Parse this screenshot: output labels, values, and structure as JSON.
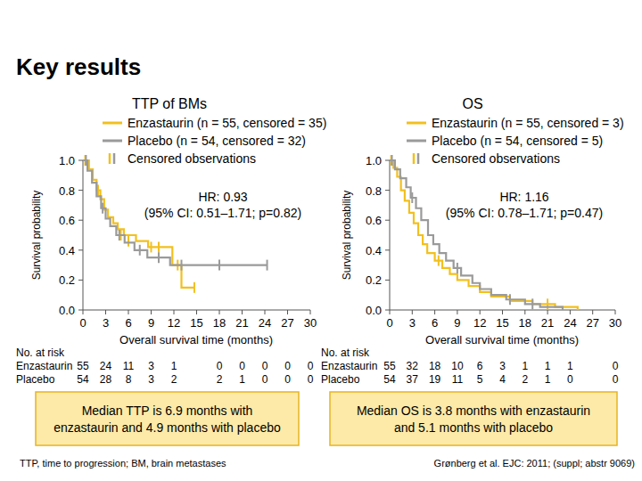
{
  "page": {
    "title": "Key results",
    "footnote": "TTP, time to progression; BM, brain metastases",
    "citation": "Grønberg et al. EJC: 2011; (suppl; abstr 9069)"
  },
  "chart_data": [
    {
      "type": "line",
      "title": "TTP of BMs",
      "x_label": "Overall survival time (months)",
      "y_label": "Survival probability",
      "xlim": [
        0,
        30
      ],
      "ylim": [
        0,
        1
      ],
      "xticks": [
        0,
        3,
        6,
        9,
        12,
        15,
        18,
        21,
        24,
        27,
        30
      ],
      "yticks": [
        {
          "value": 0,
          "label": "0.0"
        },
        0.2,
        0.4,
        0.6,
        0.8,
        {
          "value": 1,
          "label": "1.0"
        }
      ],
      "grid": false,
      "censored_label": "Censored observations",
      "annotation": [
        "HR: 0.93",
        "(95% CI: 0.51–1.71; p=0.82)"
      ],
      "series": [
        {
          "name": "Enzastaurin (n = 55, censored = 35)",
          "color": "#f2c01e",
          "x": [
            0,
            0.8,
            0.8,
            1.3,
            1.3,
            1.8,
            1.8,
            2.3,
            2.3,
            2.8,
            2.8,
            3.3,
            3.3,
            4,
            4,
            4.6,
            4.6,
            5.4,
            5.4,
            7,
            7,
            8.6,
            8.6,
            11.8,
            11.8,
            13,
            13,
            14.7
          ],
          "values": [
            1,
            1,
            0.94,
            0.94,
            0.87,
            0.87,
            0.8,
            0.8,
            0.74,
            0.74,
            0.67,
            0.67,
            0.62,
            0.62,
            0.58,
            0.58,
            0.54,
            0.54,
            0.5,
            0.5,
            0.46,
            0.46,
            0.42,
            0.42,
            0.3,
            0.3,
            0.15,
            0.15
          ],
          "censored": {
            "x": [
              0.3,
              2,
              5,
              6,
              9,
              10,
              12.5,
              14.7
            ],
            "y": [
              1,
              0.8,
              0.5,
              0.46,
              0.42,
              0.42,
              0.3,
              0.15
            ]
          }
        },
        {
          "name": "Placebo (n = 54, censored = 32)",
          "color": "#9a9a9a",
          "x": [
            0,
            0.6,
            0.6,
            1.2,
            1.2,
            1.8,
            1.8,
            2.4,
            2.4,
            3,
            3,
            3.6,
            3.6,
            4.4,
            4.4,
            5.5,
            5.5,
            6.8,
            6.8,
            8.5,
            8.5,
            11.5,
            11.5,
            24.3
          ],
          "values": [
            1,
            1,
            0.93,
            0.93,
            0.85,
            0.85,
            0.76,
            0.76,
            0.68,
            0.68,
            0.61,
            0.61,
            0.56,
            0.56,
            0.5,
            0.5,
            0.45,
            0.45,
            0.4,
            0.4,
            0.35,
            0.35,
            0.3,
            0.3
          ],
          "censored": {
            "x": [
              0.4,
              2.6,
              4.8,
              7.5,
              10,
              13,
              18,
              24.3
            ],
            "y": [
              1,
              0.68,
              0.5,
              0.4,
              0.35,
              0.3,
              0.3,
              0.3
            ]
          }
        }
      ],
      "risk_table": {
        "label": "No. at risk",
        "x": [
          0,
          3,
          6,
          9,
          12,
          18,
          21,
          24,
          27,
          30
        ],
        "rows": [
          {
            "name": "Enzastaurin",
            "values": [
              55,
              24,
              11,
              3,
              1,
              0,
              0,
              0,
              0,
              0
            ]
          },
          {
            "name": "Placebo",
            "values": [
              54,
              28,
              8,
              3,
              2,
              2,
              1,
              0,
              0,
              0
            ]
          }
        ]
      },
      "summary": [
        "Median TTP is 6.9 months with",
        "enzastaurin and 4.9 months with placebo"
      ]
    },
    {
      "type": "line",
      "title": "OS",
      "x_label": "Overall survival time (months)",
      "y_label": "Survival probability",
      "xlim": [
        0,
        30
      ],
      "ylim": [
        0,
        1
      ],
      "xticks": [
        0,
        3,
        6,
        9,
        12,
        15,
        18,
        21,
        24,
        27,
        30
      ],
      "yticks": [
        {
          "value": 0,
          "label": "0.0"
        },
        0.2,
        0.4,
        0.6,
        0.8,
        {
          "value": 1,
          "label": "1.0"
        }
      ],
      "grid": false,
      "censored_label": "Censored observations",
      "annotation": [
        "HR: 1.16",
        "(95% CI: 0.78–1.71; p=0.47)"
      ],
      "series": [
        {
          "name": "Enzastaurin (n = 55, censored = 3)",
          "color": "#f2c01e",
          "x": [
            0,
            0.5,
            0.5,
            1,
            1,
            1.5,
            1.5,
            2,
            2,
            2.6,
            2.6,
            3.2,
            3.2,
            3.8,
            3.8,
            4.4,
            4.4,
            5,
            5,
            6,
            6,
            7,
            7,
            8,
            8,
            9,
            9,
            10.5,
            10.5,
            12,
            12,
            13.5,
            13.5,
            16,
            16,
            19,
            19,
            22,
            22,
            25,
            25
          ],
          "values": [
            1,
            1,
            0.95,
            0.95,
            0.89,
            0.89,
            0.8,
            0.8,
            0.73,
            0.73,
            0.65,
            0.65,
            0.58,
            0.58,
            0.5,
            0.5,
            0.44,
            0.44,
            0.38,
            0.38,
            0.33,
            0.33,
            0.28,
            0.28,
            0.24,
            0.24,
            0.2,
            0.2,
            0.16,
            0.16,
            0.12,
            0.12,
            0.09,
            0.09,
            0.06,
            0.06,
            0.04,
            0.04,
            0.02,
            0.02,
            0
          ],
          "censored": {
            "x": [
              0.2,
              6.5,
              21
            ],
            "y": [
              1,
              0.33,
              0.04
            ]
          }
        },
        {
          "name": "Placebo (n = 54, censored = 5)",
          "color": "#9a9a9a",
          "x": [
            0,
            0.7,
            0.7,
            1.4,
            1.4,
            2.2,
            2.2,
            2.8,
            2.8,
            3.5,
            3.5,
            4.2,
            4.2,
            5.1,
            5.1,
            5.8,
            5.8,
            6.6,
            6.6,
            7.5,
            7.5,
            8.5,
            8.5,
            9.5,
            9.5,
            11,
            11,
            12,
            12,
            13.5,
            13.5,
            15.5,
            15.5,
            18,
            18,
            20,
            20,
            23,
            23
          ],
          "values": [
            1,
            1,
            0.94,
            0.94,
            0.88,
            0.88,
            0.82,
            0.82,
            0.75,
            0.75,
            0.68,
            0.68,
            0.6,
            0.6,
            0.5,
            0.5,
            0.44,
            0.44,
            0.38,
            0.38,
            0.33,
            0.33,
            0.28,
            0.28,
            0.23,
            0.23,
            0.18,
            0.18,
            0.14,
            0.14,
            0.1,
            0.1,
            0.07,
            0.07,
            0.04,
            0.04,
            0.02,
            0.02,
            0
          ],
          "censored": {
            "x": [
              0.3,
              3,
              9,
              16,
              19
            ],
            "y": [
              1,
              0.75,
              0.28,
              0.07,
              0.04
            ]
          }
        }
      ],
      "risk_table": {
        "label": "No. at risk",
        "x": [
          0,
          3,
          6,
          9,
          12,
          15,
          18,
          21,
          24,
          30
        ],
        "rows": [
          {
            "name": "Enzastaurin",
            "values": [
              55,
              32,
              18,
              10,
              6,
              3,
              1,
              1,
              1,
              0
            ]
          },
          {
            "name": "Placebo",
            "values": [
              54,
              37,
              19,
              11,
              5,
              4,
              2,
              1,
              0,
              0
            ]
          }
        ]
      },
      "summary": [
        "Median OS is 3.8 months with enzastaurin",
        "and 5.1 months with placebo"
      ]
    }
  ]
}
